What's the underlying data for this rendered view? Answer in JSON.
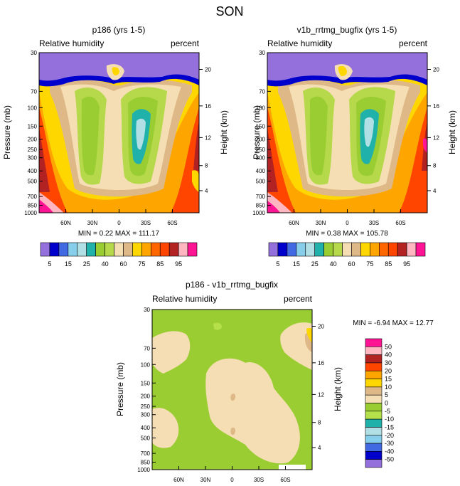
{
  "figure_title": "SON",
  "chart_data": [
    {
      "type": "contour",
      "title": "p186 (yrs 1-5)",
      "left_subtitle": "Relative humidity",
      "right_subtitle": "percent",
      "ylabel": "Pressure (mb)",
      "ylabel_right": "Height (km)",
      "pressure_ticks": [
        "30",
        "70",
        "100",
        "150",
        "200",
        "250",
        "300",
        "400",
        "500",
        "700",
        "850",
        "1000"
      ],
      "pressure_values": [
        30,
        70,
        100,
        150,
        200,
        250,
        300,
        400,
        500,
        700,
        850,
        1000
      ],
      "height_ticks": [
        "20",
        "16",
        "12",
        "8",
        "4"
      ],
      "height_values": [
        20,
        16,
        12,
        8,
        4
      ],
      "x_ticks": [
        "60N",
        "30N",
        "0",
        "30S",
        "60S"
      ],
      "x_values": [
        60,
        30,
        0,
        -30,
        -60
      ],
      "xlim": [
        90,
        -90
      ],
      "ylim": [
        1000,
        30
      ],
      "stats": "MIN =   0.22  MAX = 111.17",
      "min": 0.22,
      "max": 111.17,
      "colorbar_levels": [
        5,
        10,
        15,
        20,
        25,
        30,
        40,
        50,
        60,
        70,
        75,
        80,
        85,
        90,
        95
      ],
      "colorbar_labels": [
        "5",
        "15",
        "25",
        "40",
        "60",
        "75",
        "85",
        "95"
      ]
    },
    {
      "type": "contour",
      "title": "v1b_rrtmg_bugfix (yrs 1-5)",
      "left_subtitle": "Relative humidity",
      "right_subtitle": "percent",
      "ylabel": "Pressure (mb)",
      "ylabel_right": "Height (km)",
      "pressure_ticks": [
        "30",
        "70",
        "100",
        "150",
        "200",
        "250",
        "300",
        "400",
        "500",
        "700",
        "850",
        "1000"
      ],
      "pressure_values": [
        30,
        70,
        100,
        150,
        200,
        250,
        300,
        400,
        500,
        700,
        850,
        1000
      ],
      "height_ticks": [
        "20",
        "16",
        "12",
        "8",
        "4"
      ],
      "height_values": [
        20,
        16,
        12,
        8,
        4
      ],
      "x_ticks": [
        "60N",
        "30N",
        "0",
        "30S",
        "60S"
      ],
      "x_values": [
        60,
        30,
        0,
        -30,
        -60
      ],
      "xlim": [
        90,
        -90
      ],
      "ylim": [
        1000,
        30
      ],
      "stats": "MIN =   0.38  MAX = 105.78",
      "min": 0.38,
      "max": 105.78,
      "colorbar_levels": [
        5,
        10,
        15,
        20,
        25,
        30,
        40,
        50,
        60,
        70,
        75,
        80,
        85,
        90,
        95
      ],
      "colorbar_labels": [
        "5",
        "15",
        "25",
        "40",
        "60",
        "75",
        "85",
        "95"
      ]
    },
    {
      "type": "contour",
      "title": "p186 - v1b_rrtmg_bugfix",
      "left_subtitle": "Relative humidity",
      "right_subtitle": "percent",
      "ylabel": "Pressure (mb)",
      "ylabel_right": "Height (km)",
      "pressure_ticks": [
        "30",
        "70",
        "100",
        "150",
        "200",
        "250",
        "300",
        "400",
        "500",
        "700",
        "850",
        "1000"
      ],
      "pressure_values": [
        30,
        70,
        100,
        150,
        200,
        250,
        300,
        400,
        500,
        700,
        850,
        1000
      ],
      "height_ticks": [
        "20",
        "16",
        "12",
        "8",
        "4"
      ],
      "height_values": [
        20,
        16,
        12,
        8,
        4
      ],
      "x_ticks": [
        "60N",
        "30N",
        "0",
        "30S",
        "60S"
      ],
      "x_values": [
        60,
        30,
        0,
        -30,
        -60
      ],
      "xlim": [
        90,
        -90
      ],
      "ylim": [
        1000,
        30
      ],
      "stats": "MIN =  -6.94  MAX =  12.77",
      "min": -6.94,
      "max": 12.77,
      "colorbar_levels": [
        50,
        40,
        30,
        20,
        15,
        10,
        5,
        0,
        -5,
        -10,
        -15,
        -20,
        -30,
        -40,
        -50
      ],
      "colorbar_labels": [
        "50",
        "40",
        "30",
        "20",
        "15",
        "10",
        "5",
        "0",
        "-5",
        "-10",
        "-15",
        "-20",
        "-30",
        "-40",
        "-50"
      ]
    }
  ],
  "palettes": {
    "abs": [
      "#9370db",
      "#0000cd",
      "#4169e1",
      "#87ceeb",
      "#b0e0e6",
      "#20b2aa",
      "#9acd32",
      "#b5d94a",
      "#f5deb3",
      "#deb887",
      "#ffd700",
      "#ffa500",
      "#ff6600",
      "#ff4500",
      "#b22222",
      "#ffb6c1",
      "#ff1493"
    ],
    "diff": [
      "#ff1493",
      "#ffb6c1",
      "#b22222",
      "#ff4500",
      "#ffa500",
      "#ffd700",
      "#deb887",
      "#f5deb3",
      "#9acd32",
      "#b5e04a",
      "#20b2aa",
      "#b0e0e6",
      "#87ceeb",
      "#4169e1",
      "#0000cd",
      "#9370db"
    ]
  }
}
